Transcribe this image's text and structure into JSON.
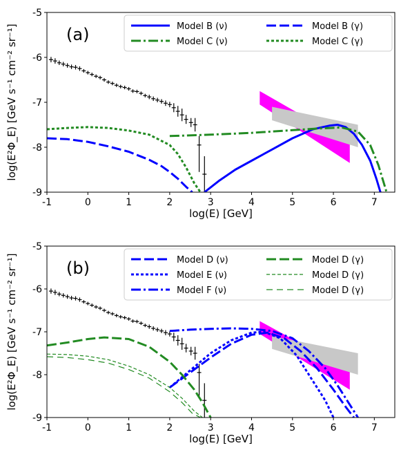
{
  "chart_data": [
    {
      "type": "line",
      "panel_label": "(a)",
      "xlabel": "log(E) [GeV]",
      "ylabel": "log(E²Φ_E) [GeV s⁻¹ cm⁻² sr⁻¹]",
      "xlim": [
        -1,
        7.5
      ],
      "ylim": [
        -9,
        -5
      ],
      "xticks": [
        "-1",
        "0",
        "1",
        "2",
        "3",
        "4",
        "5",
        "6",
        "7"
      ],
      "yticks": [
        "-9",
        "-8",
        "-7",
        "-6",
        "-5"
      ],
      "legend": {
        "placement": "top-right",
        "columns": 2
      },
      "series": [
        {
          "name": "Model B (ν)",
          "color": "#0000ff",
          "style": "solid",
          "x": [
            2.85,
            3.2,
            3.6,
            4.0,
            4.5,
            5.0,
            5.5,
            5.9,
            6.1,
            6.3,
            6.5,
            6.7,
            6.9,
            7.05,
            7.15
          ],
          "y": [
            -9.0,
            -8.75,
            -8.5,
            -8.3,
            -8.05,
            -7.8,
            -7.6,
            -7.52,
            -7.5,
            -7.55,
            -7.7,
            -7.95,
            -8.3,
            -8.7,
            -9.0
          ]
        },
        {
          "name": "Model B (γ)",
          "color": "#0000ff",
          "style": "dashed",
          "x": [
            -1,
            -0.5,
            0,
            0.5,
            1.0,
            1.5,
            1.8,
            2.0,
            2.2,
            2.4,
            2.55
          ],
          "y": [
            -7.8,
            -7.82,
            -7.88,
            -7.98,
            -8.1,
            -8.28,
            -8.42,
            -8.55,
            -8.7,
            -8.88,
            -9.0
          ]
        },
        {
          "name": "Model C (ν)",
          "color": "#228B22",
          "style": "dashdot",
          "x": [
            2.0,
            3.0,
            4.0,
            5.0,
            5.7,
            6.2,
            6.6,
            6.9,
            7.1,
            7.3
          ],
          "y": [
            -7.75,
            -7.72,
            -7.68,
            -7.62,
            -7.58,
            -7.56,
            -7.65,
            -7.95,
            -8.4,
            -9.0
          ]
        },
        {
          "name": "Model C (γ)",
          "color": "#228B22",
          "style": "dotted",
          "x": [
            -1,
            -0.5,
            0,
            0.5,
            1.0,
            1.5,
            2.0,
            2.2,
            2.4,
            2.6,
            2.75
          ],
          "y": [
            -7.6,
            -7.57,
            -7.55,
            -7.57,
            -7.63,
            -7.72,
            -7.95,
            -8.15,
            -8.45,
            -8.8,
            -9.0
          ]
        }
      ],
      "data_points": {
        "x": [
          -0.9,
          -0.8,
          -0.7,
          -0.6,
          -0.5,
          -0.4,
          -0.3,
          -0.2,
          -0.1,
          0.0,
          0.1,
          0.2,
          0.3,
          0.4,
          0.5,
          0.6,
          0.7,
          0.8,
          0.9,
          1.0,
          1.1,
          1.2,
          1.3,
          1.4,
          1.5,
          1.6,
          1.7,
          1.8,
          1.9,
          2.0,
          2.1,
          2.2,
          2.3
        ],
        "y": [
          -6.05,
          -6.08,
          -6.12,
          -6.15,
          -6.18,
          -6.21,
          -6.22,
          -6.25,
          -6.3,
          -6.34,
          -6.38,
          -6.42,
          -6.45,
          -6.5,
          -6.55,
          -6.58,
          -6.62,
          -6.65,
          -6.67,
          -6.7,
          -6.75,
          -6.76,
          -6.8,
          -6.85,
          -6.88,
          -6.92,
          -6.95,
          -6.98,
          -7.02,
          -7.05,
          -7.12,
          -7.2,
          -7.28
        ],
        "err": [
          0.06,
          0.06,
          0.05,
          0.05,
          0.05,
          0.05,
          0.05,
          0.05,
          0.04,
          0.04,
          0.04,
          0.04,
          0.04,
          0.04,
          0.04,
          0.04,
          0.04,
          0.04,
          0.04,
          0.04,
          0.04,
          0.04,
          0.04,
          0.04,
          0.05,
          0.05,
          0.05,
          0.05,
          0.06,
          0.06,
          0.1,
          0.12,
          0.14
        ]
      },
      "extra_points": [
        {
          "x": 2.4,
          "y": -7.38,
          "err": 0.1
        },
        {
          "x": 2.52,
          "y": -7.45,
          "err": 0.1
        },
        {
          "x": 2.62,
          "y": -7.5,
          "err": 0.15
        },
        {
          "x": 2.72,
          "y": -7.95,
          "err_low": 0.6,
          "err_high": 0.2
        },
        {
          "x": 2.85,
          "y": -8.6,
          "err_low": 0.4,
          "err_high": 0.4
        }
      ],
      "bands": [
        {
          "color": "#ff00ff",
          "x": [
            4.2,
            6.4
          ],
          "upper": [
            -6.75,
            -7.9
          ],
          "lower": [
            -7.05,
            -8.35
          ]
        },
        {
          "color": "#c8c8c8",
          "x": [
            4.5,
            6.6
          ],
          "upper": [
            -7.1,
            -7.5
          ],
          "lower": [
            -7.4,
            -8.0
          ]
        }
      ]
    },
    {
      "type": "line",
      "panel_label": "(b)",
      "xlabel": "log(E) [GeV]",
      "ylabel": "log(E²Φ_E) [GeV s⁻¹ cm⁻² sr⁻¹]",
      "xlim": [
        -1,
        7.5
      ],
      "ylim": [
        -9,
        -5
      ],
      "xticks": [
        "-1",
        "0",
        "1",
        "2",
        "3",
        "4",
        "5",
        "6",
        "7"
      ],
      "yticks": [
        "-9",
        "-8",
        "-7",
        "-6",
        "-5"
      ],
      "legend": {
        "placement": "top-right",
        "columns": 2
      },
      "series": [
        {
          "name": "Model D (ν)",
          "color": "#0000ff",
          "style": "dashed",
          "x": [
            2.0,
            2.5,
            3.0,
            3.5,
            4.0,
            4.4,
            4.8,
            5.2,
            5.6,
            6.0,
            6.3,
            6.5
          ],
          "y": [
            -8.3,
            -7.95,
            -7.6,
            -7.28,
            -7.07,
            -7.02,
            -7.15,
            -7.45,
            -7.85,
            -8.35,
            -8.75,
            -9.0
          ]
        },
        {
          "name": "Model E (ν)",
          "color": "#0000ff",
          "style": "dotted",
          "x": [
            2.0,
            2.5,
            3.0,
            3.5,
            4.0,
            4.3,
            4.7,
            5.1,
            5.5,
            5.8,
            6.0
          ],
          "y": [
            -8.3,
            -7.9,
            -7.5,
            -7.2,
            -7.02,
            -7.0,
            -7.15,
            -7.55,
            -8.15,
            -8.6,
            -9.0
          ]
        },
        {
          "name": "Model F (ν)",
          "color": "#0000ff",
          "style": "dashdot",
          "x": [
            2.0,
            2.5,
            3.0,
            3.5,
            4.0,
            4.5,
            5.0,
            5.4,
            5.8,
            6.1,
            6.4,
            6.6
          ],
          "y": [
            -6.98,
            -6.95,
            -6.93,
            -6.92,
            -6.93,
            -6.98,
            -7.15,
            -7.45,
            -7.85,
            -8.25,
            -8.7,
            -9.0
          ]
        },
        {
          "name": "Model D (γ)",
          "color": "#228B22",
          "style": "dashed",
          "x": [
            -1,
            -0.5,
            0,
            0.4,
            1.0,
            1.5,
            2.0,
            2.3,
            2.6,
            2.8,
            3.0
          ],
          "y": [
            -7.32,
            -7.25,
            -7.17,
            -7.13,
            -7.17,
            -7.35,
            -7.7,
            -8.0,
            -8.35,
            -8.65,
            -9.0
          ]
        },
        {
          "name": "Model D (γ)",
          "color": "#228B22",
          "style": "dashed-fine",
          "x": [
            -1,
            -0.5,
            0,
            0.5,
            1.0,
            1.5,
            2.0,
            2.3,
            2.6,
            2.8
          ],
          "y": [
            -7.52,
            -7.53,
            -7.57,
            -7.65,
            -7.8,
            -8.0,
            -8.3,
            -8.55,
            -8.85,
            -9.0
          ]
        },
        {
          "name": "Model D (γ)",
          "color": "#228B22",
          "style": "dashed-long",
          "x": [
            -1,
            -0.5,
            0,
            0.5,
            1.0,
            1.5,
            2.0,
            2.3,
            2.55,
            2.75
          ],
          "y": [
            -7.58,
            -7.6,
            -7.65,
            -7.73,
            -7.88,
            -8.08,
            -8.4,
            -8.65,
            -8.9,
            -9.0
          ]
        }
      ],
      "data_points": {
        "x": [
          -0.9,
          -0.8,
          -0.7,
          -0.6,
          -0.5,
          -0.4,
          -0.3,
          -0.2,
          -0.1,
          0.0,
          0.1,
          0.2,
          0.3,
          0.4,
          0.5,
          0.6,
          0.7,
          0.8,
          0.9,
          1.0,
          1.1,
          1.2,
          1.3,
          1.4,
          1.5,
          1.6,
          1.7,
          1.8,
          1.9,
          2.0,
          2.1,
          2.2,
          2.3
        ],
        "y": [
          -6.05,
          -6.08,
          -6.12,
          -6.15,
          -6.18,
          -6.21,
          -6.22,
          -6.25,
          -6.3,
          -6.34,
          -6.38,
          -6.42,
          -6.45,
          -6.5,
          -6.55,
          -6.58,
          -6.62,
          -6.65,
          -6.67,
          -6.7,
          -6.75,
          -6.76,
          -6.8,
          -6.85,
          -6.88,
          -6.92,
          -6.95,
          -6.98,
          -7.02,
          -7.05,
          -7.12,
          -7.2,
          -7.28
        ],
        "err": [
          0.06,
          0.06,
          0.05,
          0.05,
          0.05,
          0.05,
          0.05,
          0.05,
          0.04,
          0.04,
          0.04,
          0.04,
          0.04,
          0.04,
          0.04,
          0.04,
          0.04,
          0.04,
          0.04,
          0.04,
          0.04,
          0.04,
          0.04,
          0.04,
          0.05,
          0.05,
          0.05,
          0.05,
          0.06,
          0.06,
          0.1,
          0.12,
          0.14
        ]
      },
      "extra_points": [
        {
          "x": 2.4,
          "y": -7.38,
          "err": 0.1
        },
        {
          "x": 2.52,
          "y": -7.45,
          "err": 0.1
        },
        {
          "x": 2.62,
          "y": -7.5,
          "err": 0.15
        },
        {
          "x": 2.72,
          "y": -7.95,
          "err_low": 0.6,
          "err_high": 0.2
        },
        {
          "x": 2.85,
          "y": -8.6,
          "err_low": 0.4,
          "err_high": 0.4
        }
      ],
      "bands": [
        {
          "color": "#ff00ff",
          "x": [
            4.2,
            6.4
          ],
          "upper": [
            -6.75,
            -7.9
          ],
          "lower": [
            -7.05,
            -8.35
          ]
        },
        {
          "color": "#c8c8c8",
          "x": [
            4.5,
            6.6
          ],
          "upper": [
            -7.1,
            -7.5
          ],
          "lower": [
            -7.4,
            -8.0
          ]
        }
      ]
    }
  ]
}
